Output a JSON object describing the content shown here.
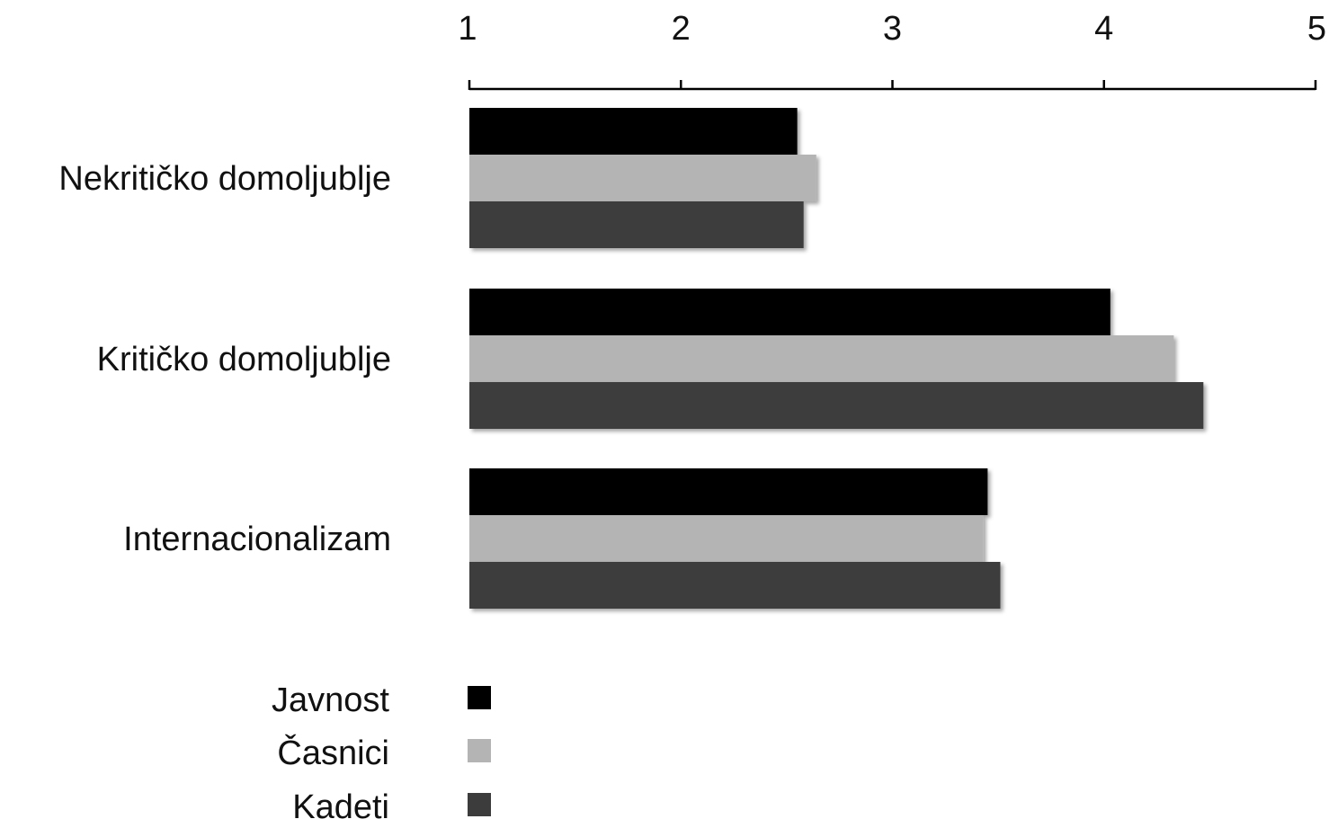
{
  "chart_data": {
    "type": "bar",
    "orientation": "horizontal",
    "title": "",
    "xlabel": "",
    "ylabel": "",
    "xlim": [
      1,
      5
    ],
    "ticks": [
      "1",
      "2",
      "3",
      "4",
      "5"
    ],
    "axis_position": "top",
    "grid": false,
    "legend_position": "bottom-left",
    "categories": [
      "Nekritičko domoljublje",
      "Kritičko domoljublje",
      "Internacionalizam"
    ],
    "series": [
      {
        "name": "Javnost",
        "color": "#000000",
        "values": [
          2.55,
          4.03,
          3.45
        ]
      },
      {
        "name": "Časnici",
        "color": "#b4b4b4",
        "values": [
          2.64,
          4.33,
          3.43
        ]
      },
      {
        "name": "Kadeti",
        "color": "#3c3c3c",
        "values": [
          2.58,
          4.47,
          3.51
        ]
      }
    ]
  }
}
